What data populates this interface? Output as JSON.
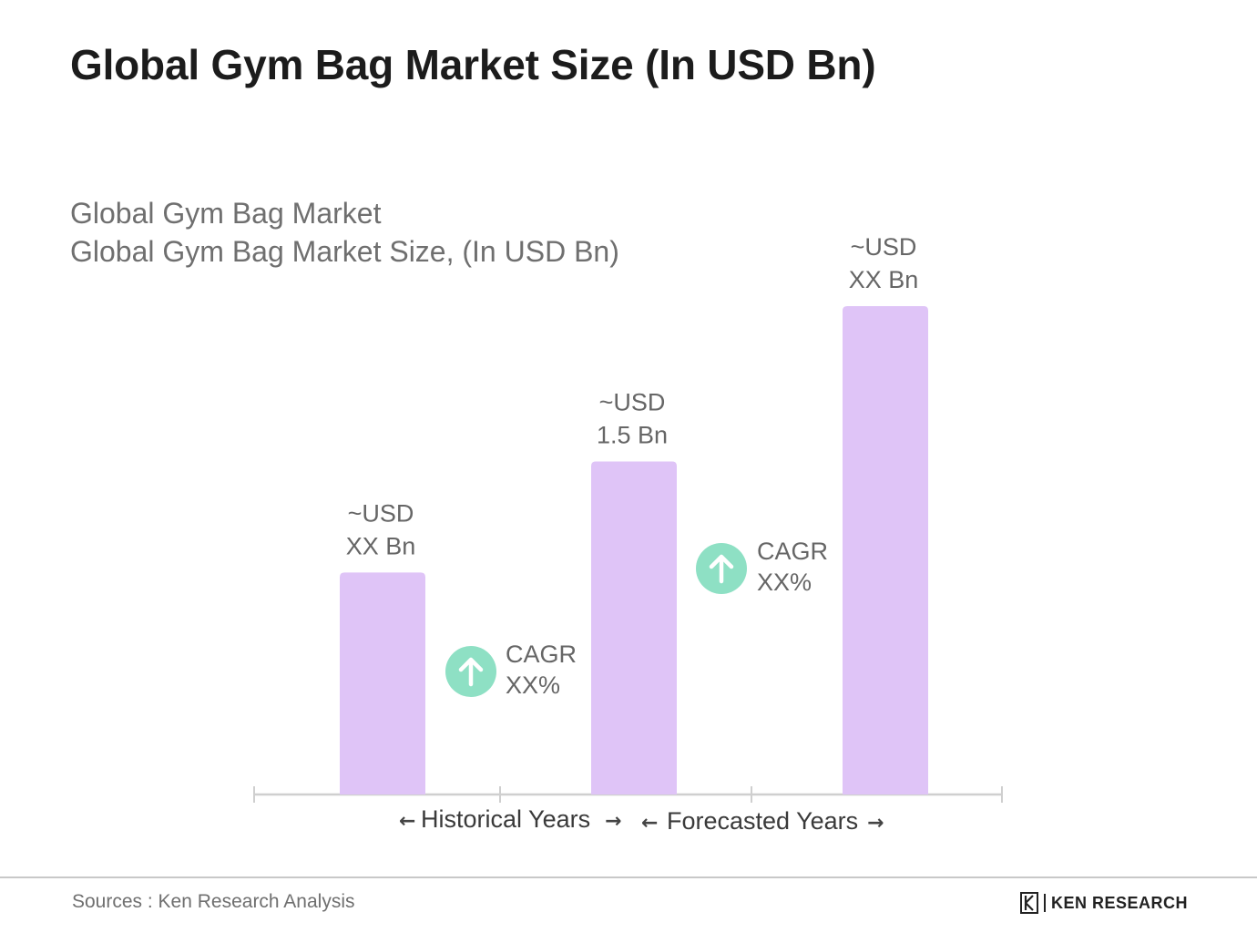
{
  "title": "Global Gym Bag Market Size (In USD Bn)",
  "subtitle_line1": "Global Gym Bag Market",
  "subtitle_line2": "Global Gym Bag Market Size, (In USD Bn)",
  "source": "Sources : Ken Research Analysis",
  "brand": "KEN RESEARCH",
  "colors": {
    "bar": "#dfc4f7",
    "cagr_circle": "#8ee0c4",
    "axis": "#cfcfcf"
  },
  "chart_data": {
    "type": "bar",
    "categories": [
      "",
      "",
      ""
    ],
    "values": [
      1.0,
      1.5,
      2.2
    ],
    "data_labels": [
      [
        "~USD",
        "XX Bn"
      ],
      [
        "~USD",
        "1.5 Bn"
      ],
      [
        "~USD",
        "XX Bn"
      ]
    ],
    "cagr_annotations": [
      {
        "line1": "CAGR",
        "line2": "XX%",
        "between": [
          0,
          1
        ],
        "icon": "arrow-up-icon"
      },
      {
        "line1": "CAGR",
        "line2": "XX%",
        "between": [
          1,
          2
        ],
        "icon": "arrow-up-icon"
      }
    ],
    "periods": [
      "Historical Years",
      "Forecasted Years"
    ],
    "ylim": [
      0,
      2.2
    ],
    "grid": false,
    "legend": "none"
  }
}
